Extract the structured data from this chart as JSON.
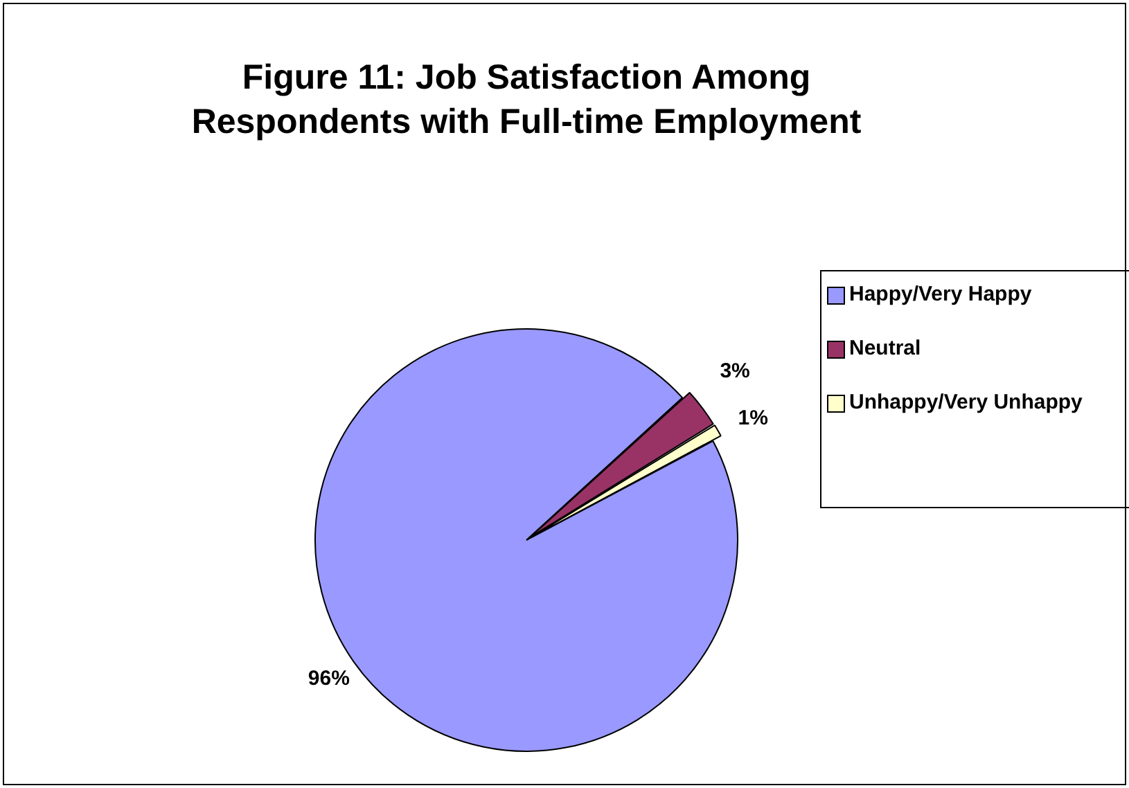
{
  "chart_data": {
    "type": "pie",
    "title": "Figure 11: Job Satisfaction Among Respondents with Full-time Employment",
    "categories": [
      "Happy/Very Happy",
      "Neutral",
      "Unhappy/Very Unhappy"
    ],
    "values": [
      96,
      3,
      1
    ],
    "colors": [
      "#9999ff",
      "#993366",
      "#ffffcc"
    ],
    "value_labels": [
      "96%",
      "3%",
      "1%"
    ],
    "legend": "right"
  }
}
